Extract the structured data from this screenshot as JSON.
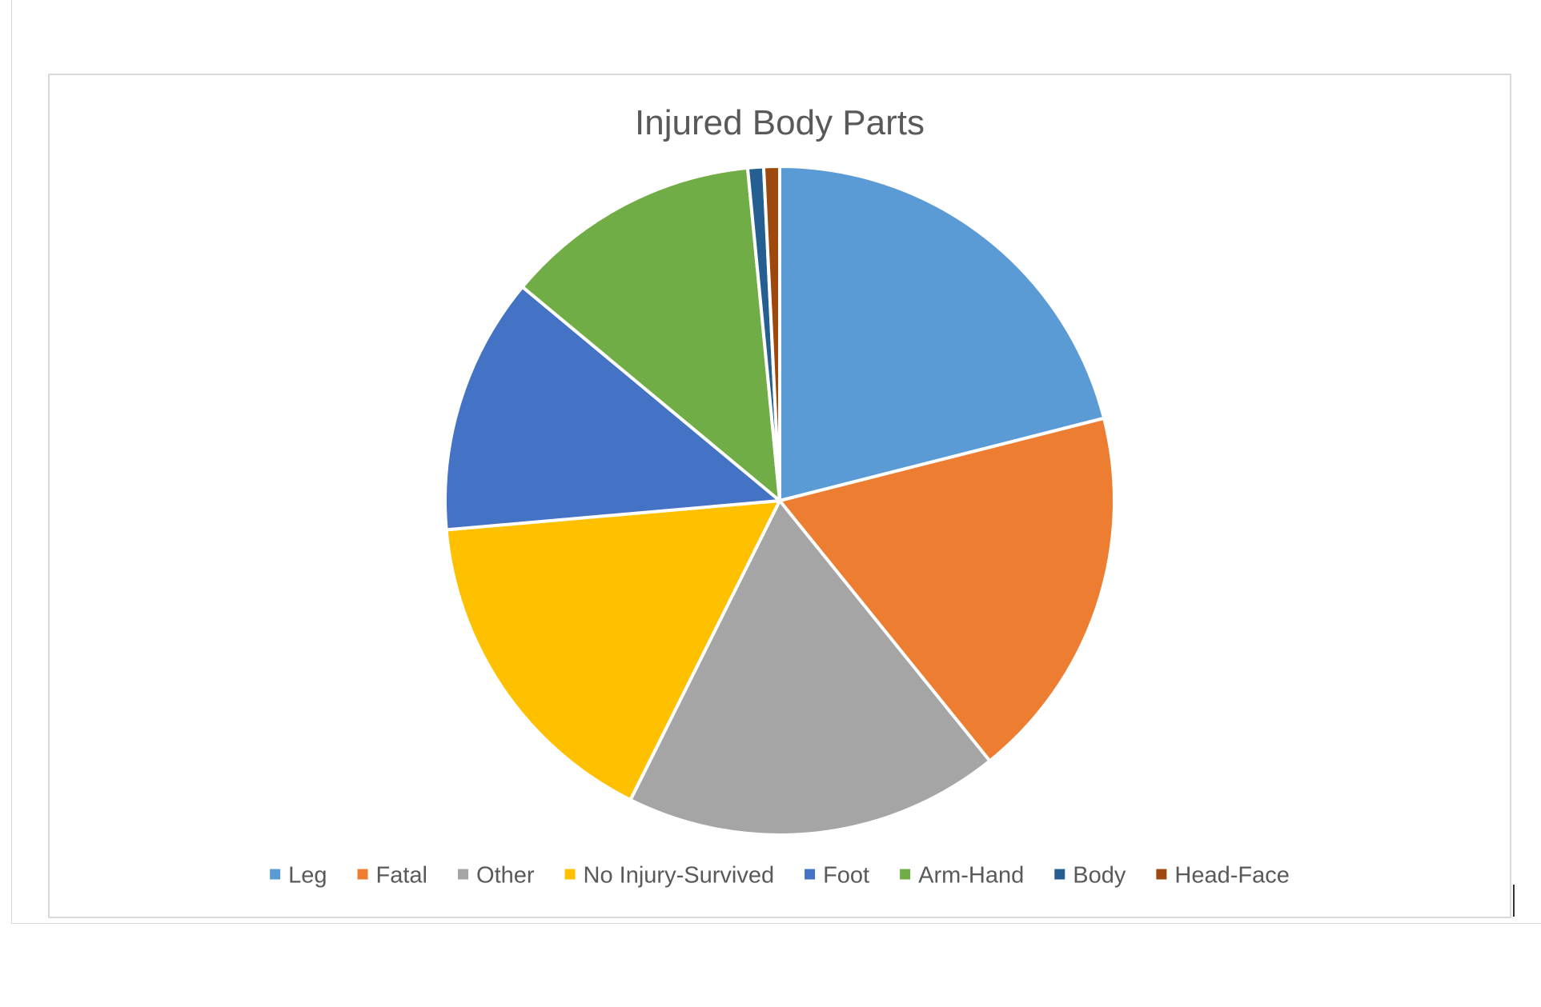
{
  "chart_data": {
    "type": "pie",
    "title": "Injured Body Parts",
    "legend_position": "bottom",
    "slices": [
      {
        "label": "Leg",
        "value": 22,
        "color": "#5B9BD5"
      },
      {
        "label": "Fatal",
        "value": 19,
        "color": "#ED7D31"
      },
      {
        "label": "Other",
        "value": 19,
        "color": "#A5A5A5"
      },
      {
        "label": "No Injury-Survived",
        "value": 17,
        "color": "#FFC000"
      },
      {
        "label": "Foot",
        "value": 13,
        "color": "#4472C4"
      },
      {
        "label": "Arm-Hand",
        "value": 13,
        "color": "#70AD47"
      },
      {
        "label": "Body",
        "value": 0.8,
        "color": "#255E91"
      },
      {
        "label": "Head-Face",
        "value": 0.8,
        "color": "#9E480E"
      }
    ]
  }
}
